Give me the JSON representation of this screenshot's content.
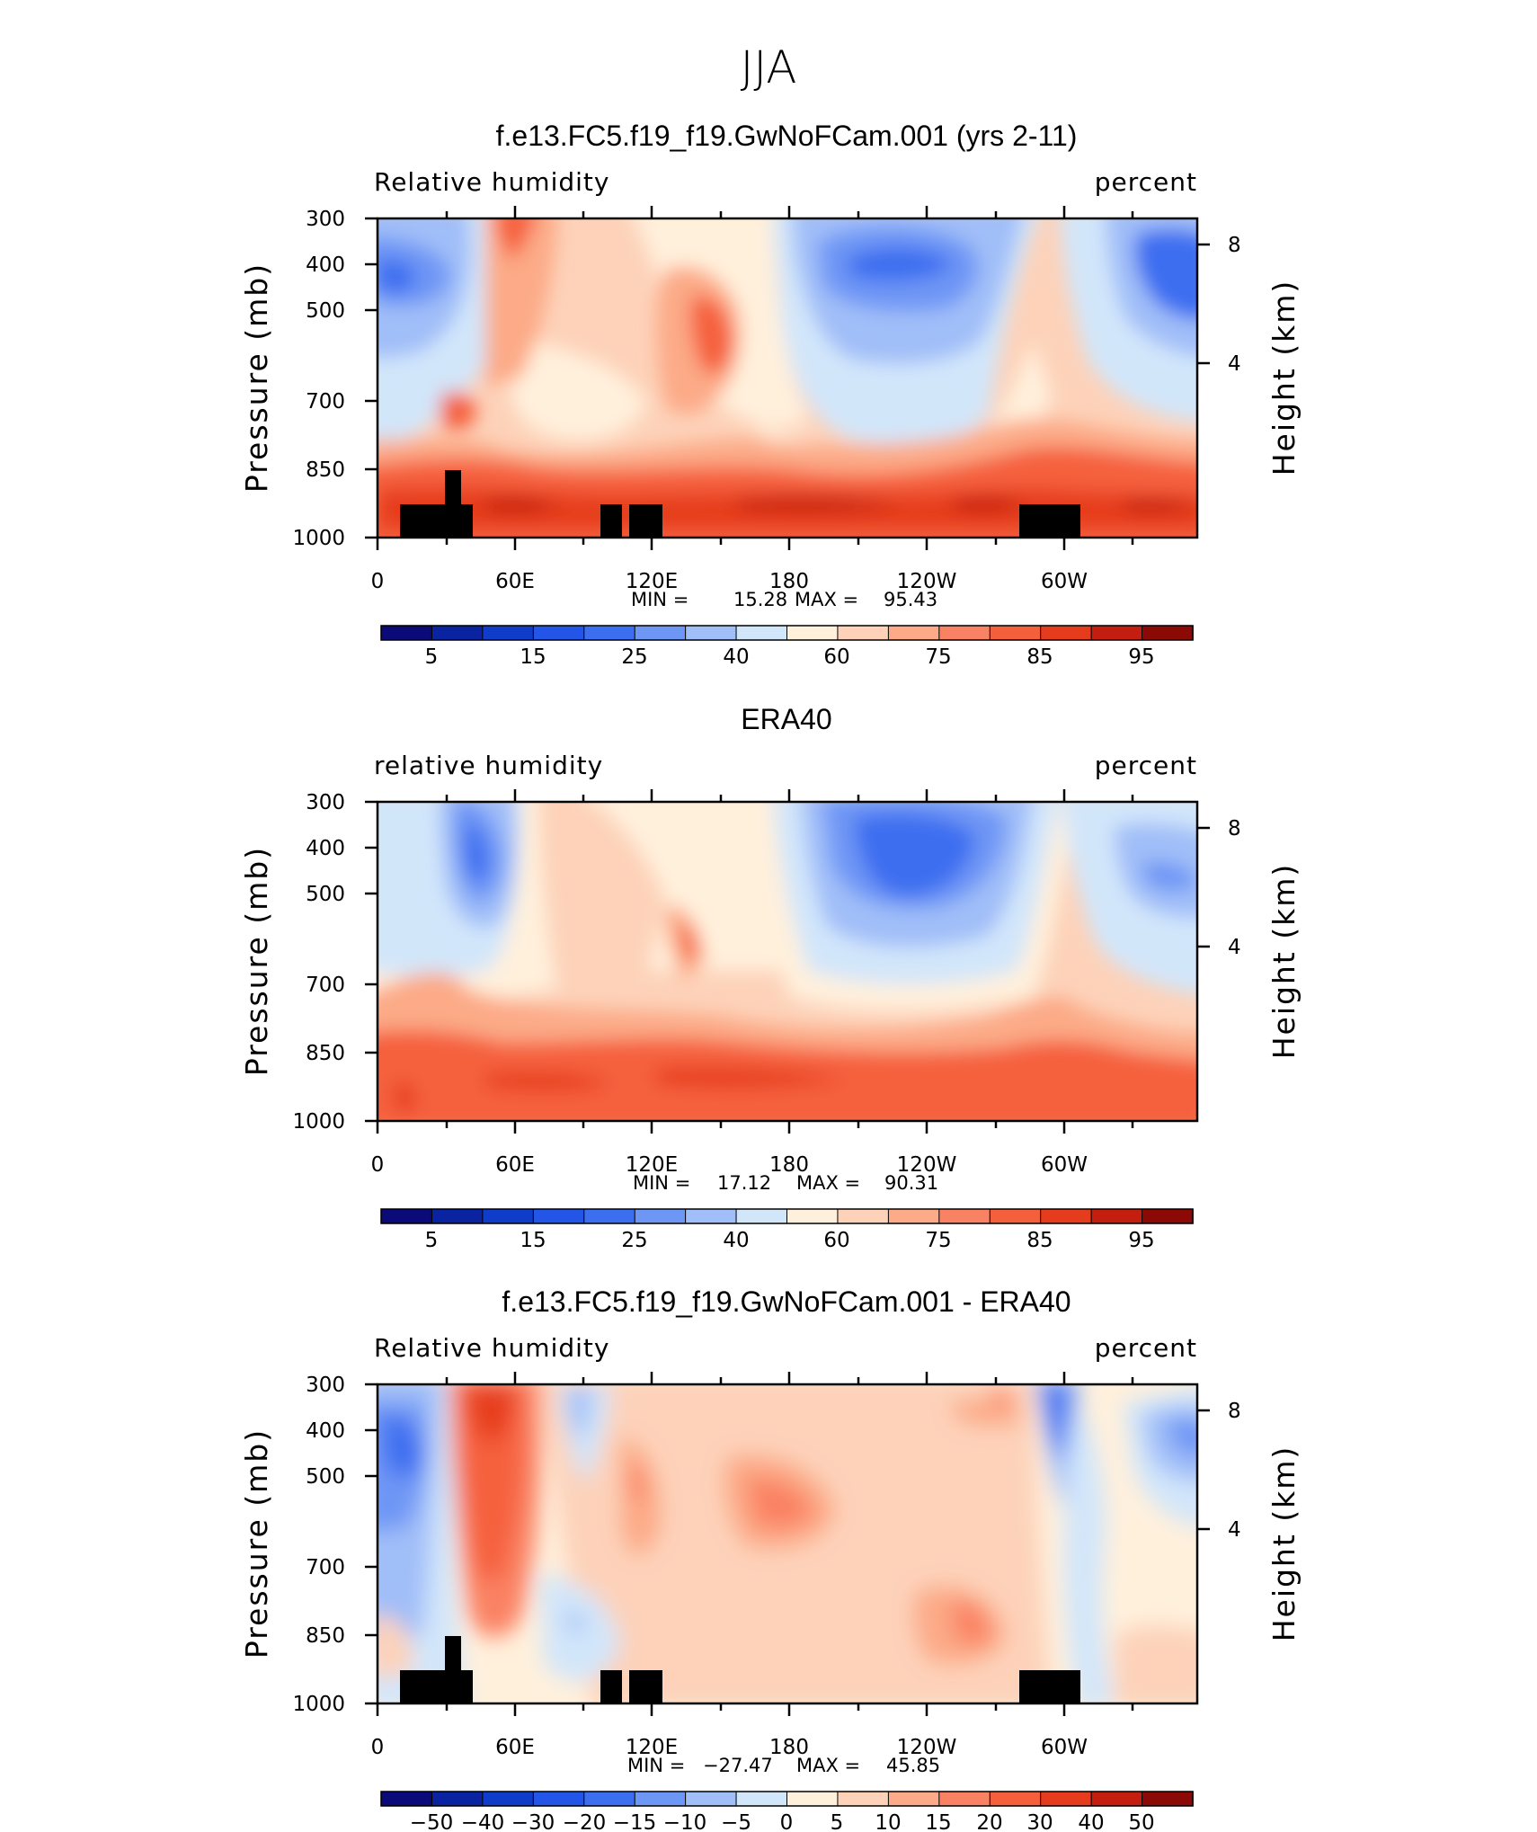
{
  "page_title": "JJA",
  "chart_data": [
    {
      "type": "heatmap",
      "title": "f.e13.FC5.f19_f19.GwNoFCam.001 (yrs 2-11)",
      "left_label": "Relative humidity",
      "right_label": "percent",
      "xlabel": "",
      "ylabel": "Pressure (mb)",
      "ylabel_right": "Height (km)",
      "xlim": [
        0,
        360
      ],
      "x_tick_labels": [
        "0",
        "60E",
        "120E",
        "180",
        "120W",
        "60W"
      ],
      "y_tick_labels": [
        "300",
        "400",
        "500",
        "700",
        "850",
        "1000"
      ],
      "right_tick_labels": [
        "8",
        "4"
      ],
      "min_label": "MIN =",
      "min_value": "15.28",
      "max_label": "MAX =",
      "max_value": "95.43",
      "colorbar_labels": [
        "5",
        "15",
        "25",
        "40",
        "60",
        "75",
        "85",
        "95"
      ]
    },
    {
      "type": "heatmap",
      "title": "ERA40",
      "left_label": "relative humidity",
      "right_label": "percent",
      "xlabel": "",
      "ylabel": "Pressure (mb)",
      "ylabel_right": "Height (km)",
      "xlim": [
        0,
        360
      ],
      "x_tick_labels": [
        "0",
        "60E",
        "120E",
        "180",
        "120W",
        "60W"
      ],
      "y_tick_labels": [
        "300",
        "400",
        "500",
        "700",
        "850",
        "1000"
      ],
      "right_tick_labels": [
        "8",
        "4"
      ],
      "min_label": "MIN =",
      "min_value": "17.12",
      "max_label": "MAX =",
      "max_value": "90.31",
      "colorbar_labels": [
        "5",
        "15",
        "25",
        "40",
        "60",
        "75",
        "85",
        "95"
      ]
    },
    {
      "type": "heatmap",
      "title": "f.e13.FC5.f19_f19.GwNoFCam.001 - ERA40",
      "left_label": "Relative humidity",
      "right_label": "percent",
      "xlabel": "",
      "ylabel": "Pressure (mb)",
      "ylabel_right": "Height (km)",
      "xlim": [
        0,
        360
      ],
      "x_tick_labels": [
        "0",
        "60E",
        "120E",
        "180",
        "120W",
        "60W"
      ],
      "y_tick_labels": [
        "300",
        "400",
        "500",
        "700",
        "850",
        "1000"
      ],
      "right_tick_labels": [
        "8",
        "4"
      ],
      "min_label": "MIN =",
      "min_value": "−27.47",
      "max_label": "MAX =",
      "max_value": "45.85",
      "colorbar_labels": [
        "−50",
        "−40",
        "−30",
        "−20",
        "−15",
        "−10",
        "−5",
        "0",
        "5",
        "10",
        "15",
        "20",
        "30",
        "40",
        "50"
      ]
    }
  ],
  "colors": {
    "palette": [
      "#0a0a78",
      "#0a23a0",
      "#0f3cc8",
      "#2355e6",
      "#3c6ef0",
      "#6e96f5",
      "#a0bef8",
      "#d2e6fa",
      "#fff0dc",
      "#fdd2b9",
      "#fcaa87",
      "#fa8264",
      "#f5603c",
      "#e63c1e",
      "#c31e0f",
      "#8c0a05"
    ],
    "topography": "#000000"
  }
}
